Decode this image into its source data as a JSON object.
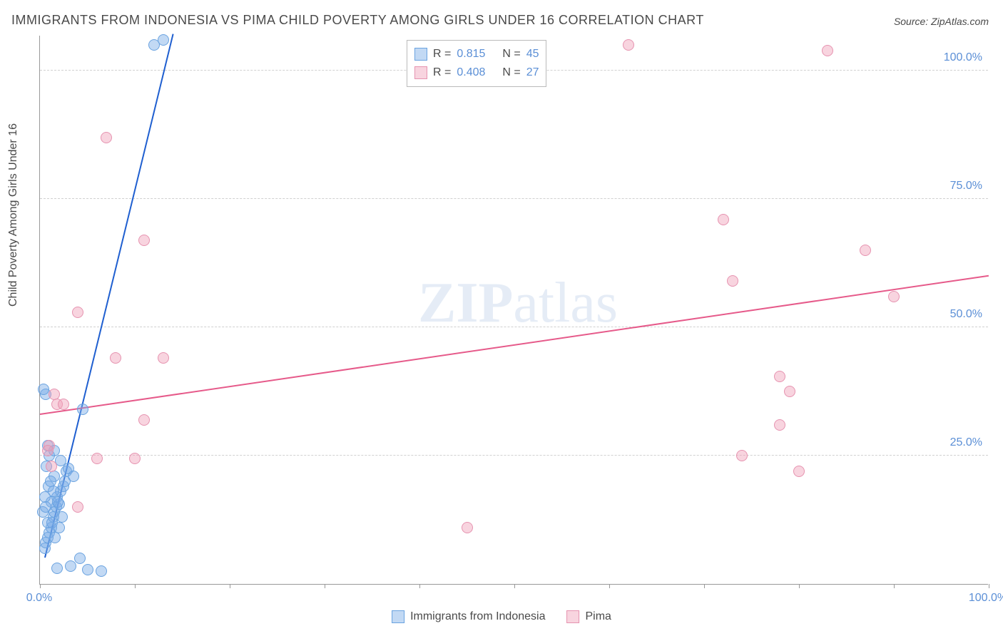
{
  "title": "IMMIGRANTS FROM INDONESIA VS PIMA CHILD POVERTY AMONG GIRLS UNDER 16 CORRELATION CHART",
  "source": "Source: ZipAtlas.com",
  "y_axis_label": "Child Poverty Among Girls Under 16",
  "watermark": {
    "part1": "ZIP",
    "part2": "atlas"
  },
  "chart": {
    "type": "scatter",
    "background_color": "#ffffff",
    "grid_color": "#d0d0d0",
    "axis_color": "#999999",
    "text_color": "#4a4a4a",
    "value_color": "#5b8fd6",
    "xlim": [
      0,
      100
    ],
    "ylim": [
      0,
      107
    ],
    "x_ticks": [
      0,
      10,
      20,
      30,
      40,
      50,
      60,
      70,
      80,
      90,
      100
    ],
    "x_tick_labels": {
      "0": "0.0%",
      "100": "100.0%"
    },
    "y_ticks": [
      25,
      50,
      75,
      100
    ],
    "y_tick_labels": {
      "25": "25.0%",
      "50": "50.0%",
      "75": "75.0%",
      "100": "100.0%"
    },
    "marker_radius": 8,
    "marker_stroke_width": 1.5,
    "line_width": 2,
    "title_fontsize": 18,
    "label_fontsize": 16
  },
  "series": [
    {
      "name": "Immigrants from Indonesia",
      "fill": "rgba(120,170,230,0.45)",
      "stroke": "#6aa3e0",
      "line_color": "#1f5fd0",
      "R": "0.815",
      "N": "45",
      "trend": {
        "x1": 0.5,
        "y1": 5,
        "x2": 14,
        "y2": 107
      },
      "points": [
        [
          0.5,
          7
        ],
        [
          0.6,
          8
        ],
        [
          0.8,
          9
        ],
        [
          1.0,
          10
        ],
        [
          1.2,
          11
        ],
        [
          0.8,
          12
        ],
        [
          1.4,
          13
        ],
        [
          1.5,
          14
        ],
        [
          1.7,
          15
        ],
        [
          2.0,
          15.5
        ],
        [
          1.2,
          16
        ],
        [
          1.8,
          17
        ],
        [
          2.2,
          18
        ],
        [
          2.5,
          19
        ],
        [
          1.5,
          21
        ],
        [
          2.8,
          22
        ],
        [
          3.0,
          22.5
        ],
        [
          2.2,
          24
        ],
        [
          1.0,
          25
        ],
        [
          1.5,
          26
        ],
        [
          0.8,
          27
        ],
        [
          4.5,
          34
        ],
        [
          0.6,
          37
        ],
        [
          0.4,
          38
        ],
        [
          12,
          105
        ],
        [
          13,
          106
        ],
        [
          1.8,
          3
        ],
        [
          3.2,
          3.5
        ],
        [
          5.0,
          2.8
        ],
        [
          6.5,
          2.5
        ],
        [
          4.2,
          5
        ],
        [
          0.3,
          14
        ],
        [
          0.5,
          17
        ],
        [
          0.9,
          19
        ],
        [
          1.1,
          20
        ],
        [
          1.3,
          12
        ],
        [
          1.6,
          9
        ],
        [
          2.0,
          11
        ],
        [
          2.3,
          13
        ],
        [
          0.7,
          23
        ],
        [
          1.4,
          18
        ],
        [
          1.9,
          16
        ],
        [
          2.6,
          20
        ],
        [
          3.5,
          21
        ],
        [
          0.6,
          15
        ]
      ]
    },
    {
      "name": "Pima",
      "fill": "rgba(240,160,185,0.45)",
      "stroke": "#e693b0",
      "line_color": "#e65a8a",
      "R": "0.408",
      "N": "27",
      "trend": {
        "x1": 0,
        "y1": 33,
        "x2": 100,
        "y2": 60
      },
      "points": [
        [
          7,
          87
        ],
        [
          4,
          53
        ],
        [
          11,
          67
        ],
        [
          13,
          44
        ],
        [
          8,
          44
        ],
        [
          11,
          32
        ],
        [
          6,
          24.5
        ],
        [
          10,
          24.5
        ],
        [
          1.5,
          37
        ],
        [
          1.8,
          35
        ],
        [
          1,
          27
        ],
        [
          0.8,
          26
        ],
        [
          1.2,
          23
        ],
        [
          4,
          15
        ],
        [
          45,
          11
        ],
        [
          62,
          105
        ],
        [
          83,
          104
        ],
        [
          72,
          71
        ],
        [
          87,
          65
        ],
        [
          90,
          56
        ],
        [
          73,
          59
        ],
        [
          79,
          37.5
        ],
        [
          78,
          40.5
        ],
        [
          78,
          31
        ],
        [
          80,
          22
        ],
        [
          74,
          25
        ],
        [
          2.5,
          35
        ]
      ]
    }
  ],
  "legend_top": {
    "rows": [
      {
        "swatch_fill": "rgba(120,170,230,0.45)",
        "swatch_stroke": "#6aa3e0",
        "r_label": "R =",
        "r_val": "0.815",
        "n_label": "N =",
        "n_val": "45"
      },
      {
        "swatch_fill": "rgba(240,160,185,0.45)",
        "swatch_stroke": "#e693b0",
        "r_label": "R =",
        "r_val": "0.408",
        "n_label": "N =",
        "n_val": "27"
      }
    ]
  },
  "legend_bottom": [
    {
      "swatch_fill": "rgba(120,170,230,0.45)",
      "swatch_stroke": "#6aa3e0",
      "label": "Immigrants from Indonesia"
    },
    {
      "swatch_fill": "rgba(240,160,185,0.45)",
      "swatch_stroke": "#e693b0",
      "label": "Pima"
    }
  ]
}
